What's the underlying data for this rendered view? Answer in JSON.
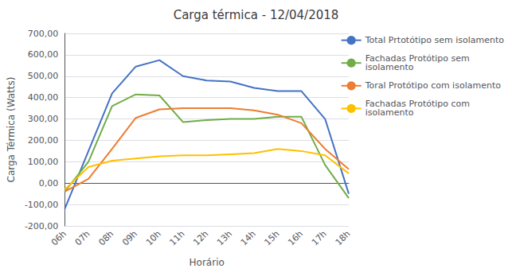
{
  "chart_data": {
    "type": "line",
    "title": "Carga térmica - 12/04/2018",
    "x_label": "Horário",
    "y_label": "Carga Térmica (Watts)",
    "categories": [
      "06h",
      "07h",
      "08h",
      "09h",
      "10h",
      "11h",
      "12h",
      "13h",
      "14h",
      "15h",
      "16h",
      "17h",
      "18h"
    ],
    "series": [
      {
        "name": "Total Prtotótipo sem isolamento",
        "color": "#4472C4",
        "values": [
          -120,
          150,
          420,
          545,
          575,
          500,
          480,
          475,
          445,
          430,
          430,
          300,
          -50
        ]
      },
      {
        "name": "Fachadas Protótipo sem\nisolamento",
        "color": "#70AD47",
        "values": [
          -40,
          100,
          360,
          415,
          410,
          285,
          295,
          300,
          300,
          310,
          310,
          85,
          -70
        ]
      },
      {
        "name": "Toral Protótipo com isolamento",
        "color": "#ED7D31",
        "values": [
          -40,
          20,
          160,
          305,
          345,
          350,
          350,
          350,
          340,
          320,
          280,
          160,
          65
        ]
      },
      {
        "name": "Fachadas Protótipo com\nisolamento",
        "color": "#FFC000",
        "values": [
          -30,
          75,
          105,
          115,
          125,
          130,
          130,
          135,
          140,
          160,
          150,
          130,
          45
        ]
      }
    ],
    "ylim": [
      -200,
      700
    ],
    "yticks": [
      {
        "value": -200,
        "label": "-200,00"
      },
      {
        "value": -100,
        "label": "-100,00"
      },
      {
        "value": 0,
        "label": "0,00"
      },
      {
        "value": 100,
        "label": "100,00"
      },
      {
        "value": 200,
        "label": "200,00"
      },
      {
        "value": 300,
        "label": "300,00"
      },
      {
        "value": 400,
        "label": "400,00"
      },
      {
        "value": 500,
        "label": "500,00"
      },
      {
        "value": 600,
        "label": "600,00"
      },
      {
        "value": 700,
        "label": "700,00"
      }
    ],
    "grid": true,
    "legend": "right"
  }
}
